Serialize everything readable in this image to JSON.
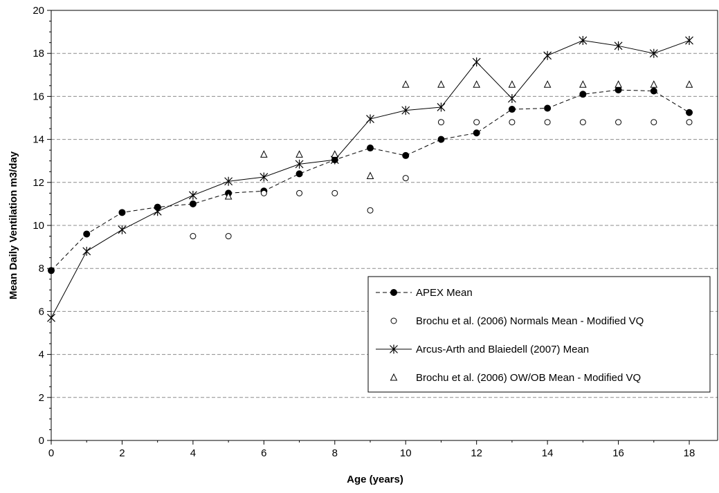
{
  "chart_data": {
    "type": "line",
    "xlabel": "Age (years)",
    "ylabel": "Mean Daily Ventilation m3/day",
    "xlim": [
      0,
      18.8
    ],
    "ylim": [
      0,
      20
    ],
    "x_ticks": [
      0,
      2,
      4,
      6,
      8,
      10,
      12,
      14,
      16,
      18
    ],
    "x_tick_labels": [
      "0",
      "2",
      "4",
      "6",
      "8",
      "10",
      "12",
      "14",
      "16",
      "18"
    ],
    "y_ticks": [
      0,
      2,
      4,
      6,
      8,
      10,
      12,
      14,
      16,
      18,
      20
    ],
    "y_tick_labels": [
      "0",
      "2",
      "4",
      "6",
      "8",
      "10",
      "12",
      "14",
      "16",
      "18",
      "20"
    ],
    "grid": "horizontal dashed",
    "legend_position": "bottom-right",
    "series": [
      {
        "name": "APEX Mean",
        "style": "dashed-line-filled-circle",
        "color": "#000000",
        "x": [
          0,
          1,
          2,
          3,
          4,
          5,
          6,
          7,
          8,
          9,
          10,
          11,
          12,
          13,
          14,
          15,
          16,
          17,
          18
        ],
        "y": [
          7.9,
          9.6,
          10.6,
          10.85,
          11.0,
          11.5,
          11.6,
          12.4,
          13.05,
          13.6,
          13.25,
          14.0,
          14.3,
          15.4,
          15.45,
          16.1,
          16.3,
          16.25,
          15.25
        ]
      },
      {
        "name": "Brochu et al. (2006) Normals Mean - Modified VQ",
        "style": "open-circle",
        "color": "#000000",
        "x": [
          4,
          5,
          6,
          7,
          8,
          9,
          10,
          11,
          12,
          13,
          14,
          15,
          16,
          17,
          18
        ],
        "y": [
          9.5,
          9.5,
          11.5,
          11.5,
          11.5,
          10.7,
          12.2,
          14.8,
          14.8,
          14.8,
          14.8,
          14.8,
          14.8,
          14.8,
          14.8
        ]
      },
      {
        "name": "Arcus-Arth and Blaiedell (2007) Mean",
        "style": "solid-line-star",
        "color": "#000000",
        "x": [
          0,
          1,
          2,
          3,
          4,
          5,
          6,
          7,
          8,
          9,
          10,
          11,
          12,
          13,
          14,
          15,
          16,
          17,
          18
        ],
        "y": [
          5.7,
          8.8,
          9.8,
          10.65,
          11.4,
          12.05,
          12.25,
          12.85,
          13.05,
          14.95,
          15.35,
          15.5,
          17.6,
          15.9,
          17.9,
          18.6,
          18.35,
          18.0,
          18.6
        ]
      },
      {
        "name": "Brochu et al. (2006) OW/OB Mean - Modified VQ",
        "style": "open-triangle",
        "color": "#000000",
        "x": [
          5,
          6,
          7,
          8,
          9,
          10,
          11,
          12,
          13,
          14,
          15,
          16,
          17,
          18
        ],
        "y": [
          11.35,
          13.3,
          13.3,
          13.3,
          12.3,
          16.55,
          16.55,
          16.55,
          16.55,
          16.55,
          16.55,
          16.55,
          16.55,
          16.55
        ]
      }
    ]
  }
}
